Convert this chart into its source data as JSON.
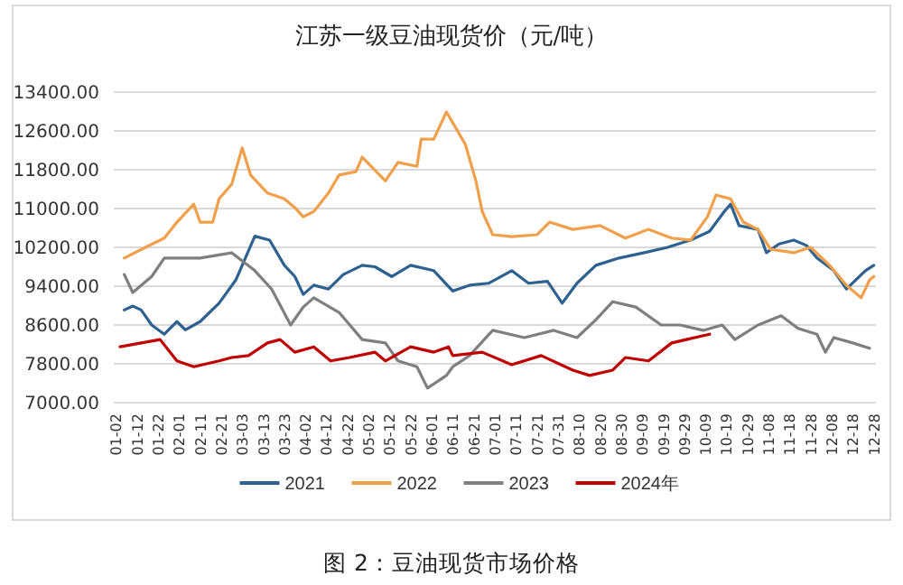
{
  "chart_data": {
    "type": "line",
    "title": "江苏一级豆油现货价（元/吨）",
    "annotations": [
      "图 2：豆油现货市场价格"
    ],
    "xlim": [
      "--01-01",
      "--12-29"
    ],
    "xticks": [
      {
        "value": "--01-02",
        "label": "01-02"
      },
      {
        "value": "--01-12",
        "label": "01-12"
      },
      {
        "value": "--01-22",
        "label": "01-22"
      },
      {
        "value": "--02-01",
        "label": "02-01"
      },
      {
        "value": "--02-11",
        "label": "02-11"
      },
      {
        "value": "--02-21",
        "label": "02-21"
      },
      {
        "value": "--03-03",
        "label": "03-03"
      },
      {
        "value": "--03-13",
        "label": "03-13"
      },
      {
        "value": "--03-23",
        "label": "03-23"
      },
      {
        "value": "--04-02",
        "label": "04-02"
      },
      {
        "value": "--04-12",
        "label": "04-12"
      },
      {
        "value": "--04-22",
        "label": "04-22"
      },
      {
        "value": "--05-02",
        "label": "05-02"
      },
      {
        "value": "--05-12",
        "label": "05-12"
      },
      {
        "value": "--05-22",
        "label": "05-22"
      },
      {
        "value": "--06-01",
        "label": "06-01"
      },
      {
        "value": "--06-11",
        "label": "06-11"
      },
      {
        "value": "--06-21",
        "label": "06-21"
      },
      {
        "value": "--07-01",
        "label": "07-01"
      },
      {
        "value": "--07-11",
        "label": "07-11"
      },
      {
        "value": "--07-21",
        "label": "07-21"
      },
      {
        "value": "--07-31",
        "label": "07-31"
      },
      {
        "value": "--08-10",
        "label": "08-10"
      },
      {
        "value": "--08-20",
        "label": "08-20"
      },
      {
        "value": "--08-30",
        "label": "08-30"
      },
      {
        "value": "--09-09",
        "label": "09-09"
      },
      {
        "value": "--09-19",
        "label": "09-19"
      },
      {
        "value": "--09-29",
        "label": "09-29"
      },
      {
        "value": "--10-09",
        "label": "10-09"
      },
      {
        "value": "--10-19",
        "label": "10-19"
      },
      {
        "value": "--10-29",
        "label": "10-29"
      },
      {
        "value": "--11-08",
        "label": "11-08"
      },
      {
        "value": "--11-18",
        "label": "11-18"
      },
      {
        "value": "--11-28",
        "label": "11-28"
      },
      {
        "value": "--12-08",
        "label": "12-08"
      },
      {
        "value": "--12-18",
        "label": "12-18"
      },
      {
        "value": "--12-28",
        "label": "12-28"
      }
    ],
    "ylim": [
      7000,
      13400
    ],
    "yticks": [
      {
        "value": 7000,
        "label": "7000.00"
      },
      {
        "value": 7800,
        "label": "7800.00"
      },
      {
        "value": 8600,
        "label": "8600.00"
      },
      {
        "value": 9400,
        "label": "9400.00"
      },
      {
        "value": 10200,
        "label": "10200.00"
      },
      {
        "value": 11000,
        "label": "11000.00"
      },
      {
        "value": 11800,
        "label": "11800.00"
      },
      {
        "value": 12600,
        "label": "12600.00"
      },
      {
        "value": 13400,
        "label": "13400.00"
      }
    ],
    "grid": "y",
    "legend": "bottom",
    "series": [
      {
        "name": "2021",
        "color": "#2f6190",
        "x": [
          "--01-06",
          "--01-10",
          "--01-14",
          "--01-19",
          "--01-25",
          "--01-31",
          "--02-04",
          "--02-11",
          "--02-20",
          "--02-28",
          "--03-09",
          "--03-16",
          "--03-23",
          "--03-28",
          "--04-01",
          "--04-06",
          "--04-13",
          "--04-20",
          "--04-29",
          "--05-05",
          "--05-13",
          "--05-22",
          "--06-02",
          "--06-11",
          "--06-19",
          "--06-28",
          "--07-09",
          "--07-17",
          "--07-26",
          "--08-02",
          "--08-09",
          "--08-18",
          "--08-29",
          "--09-10",
          "--09-21",
          "--10-02",
          "--10-11",
          "--10-18",
          "--10-21",
          "--10-25",
          "--11-03",
          "--11-07",
          "--11-13",
          "--11-20",
          "--11-26",
          "--12-01",
          "--12-09",
          "--12-15",
          "--12-24",
          "--12-28"
        ],
        "values": [
          8910,
          8990,
          8910,
          8600,
          8410,
          8670,
          8500,
          8670,
          9050,
          9530,
          10430,
          10350,
          9830,
          9600,
          9230,
          9420,
          9340,
          9640,
          9830,
          9800,
          9600,
          9830,
          9720,
          9300,
          9420,
          9460,
          9720,
          9460,
          9500,
          9050,
          9460,
          9830,
          9980,
          10090,
          10200,
          10350,
          10530,
          10940,
          11090,
          10650,
          10570,
          10090,
          10270,
          10350,
          10240,
          9980,
          9720,
          9340,
          9720,
          9830
        ]
      },
      {
        "name": "2022",
        "color": "#f0a04b",
        "x": [
          "--01-06",
          "--01-16",
          "--01-25",
          "--01-31",
          "--02-08",
          "--02-11",
          "--02-17",
          "--02-20",
          "--02-26",
          "--03-03",
          "--03-07",
          "--03-15",
          "--03-23",
          "--03-28",
          "--04-01",
          "--04-06",
          "--04-13",
          "--04-18",
          "--04-26",
          "--04-29",
          "--05-10",
          "--05-16",
          "--05-25",
          "--05-27",
          "--06-02",
          "--06-08",
          "--06-13",
          "--06-17",
          "--06-22",
          "--06-25",
          "--06-30",
          "--07-09",
          "--07-21",
          "--07-27",
          "--08-07",
          "--08-20",
          "--09-01",
          "--09-12",
          "--09-23",
          "--10-02",
          "--10-10",
          "--10-14",
          "--10-21",
          "--10-27",
          "--11-03",
          "--11-09",
          "--11-20",
          "--11-28",
          "--12-07",
          "--12-15",
          "--12-22",
          "--12-26",
          "--12-28"
        ],
        "values": [
          9980,
          10200,
          10390,
          10720,
          11090,
          10720,
          10720,
          11200,
          11500,
          12250,
          11690,
          11320,
          11200,
          11020,
          10830,
          10940,
          11320,
          11690,
          11760,
          12060,
          11570,
          11950,
          11870,
          12430,
          12430,
          12990,
          12620,
          12320,
          11570,
          10940,
          10460,
          10420,
          10460,
          10720,
          10570,
          10650,
          10390,
          10570,
          10390,
          10350,
          10830,
          11280,
          11200,
          10720,
          10570,
          10160,
          10090,
          10200,
          9830,
          9420,
          9160,
          9530,
          9600
        ]
      },
      {
        "name": "2023",
        "color": "#7f7f7f",
        "x": [
          "--01-06",
          "--01-10",
          "--01-19",
          "--01-25",
          "--02-11",
          "--02-26",
          "--03-09",
          "--03-17",
          "--03-26",
          "--04-01",
          "--04-06",
          "--04-18",
          "--04-29",
          "--05-10",
          "--05-16",
          "--05-25",
          "--05-30",
          "--06-08",
          "--06-11",
          "--06-19",
          "--06-30",
          "--07-15",
          "--07-29",
          "--08-09",
          "--08-18",
          "--08-26",
          "--09-06",
          "--09-18",
          "--09-27",
          "--10-08",
          "--10-17",
          "--10-23",
          "--11-03",
          "--11-14",
          "--11-22",
          "--12-01",
          "--12-05",
          "--12-09",
          "--12-18",
          "--12-26"
        ],
        "values": [
          9640,
          9270,
          9600,
          9980,
          9980,
          10090,
          9720,
          9340,
          8600,
          8970,
          9160,
          8860,
          8300,
          8230,
          7860,
          7740,
          7300,
          7560,
          7740,
          7970,
          8490,
          8340,
          8490,
          8340,
          8710,
          9080,
          8970,
          8600,
          8600,
          8490,
          8600,
          8300,
          8600,
          8790,
          8530,
          8410,
          8040,
          8340,
          8230,
          8120
        ]
      },
      {
        "name": "2024年",
        "color": "#c00000",
        "x": [
          "--01-04",
          "--01-14",
          "--01-23",
          "--01-31",
          "--02-08",
          "--02-20",
          "--02-26",
          "--03-06",
          "--03-15",
          "--03-21",
          "--03-28",
          "--04-06",
          "--04-14",
          "--04-23",
          "--05-05",
          "--05-10",
          "--05-22",
          "--06-02",
          "--06-09",
          "--06-11",
          "--06-25",
          "--07-09",
          "--07-23",
          "--08-07",
          "--08-15",
          "--08-26",
          "--09-01",
          "--09-12",
          "--09-23",
          "--10-11"
        ],
        "values": [
          8150,
          8230,
          8300,
          7860,
          7740,
          7860,
          7930,
          7970,
          8230,
          8300,
          8040,
          8150,
          7860,
          7930,
          8040,
          7860,
          8150,
          8040,
          8150,
          7970,
          8040,
          7780,
          7970,
          7670,
          7560,
          7670,
          7930,
          7860,
          8230,
          8410
        ]
      }
    ]
  }
}
